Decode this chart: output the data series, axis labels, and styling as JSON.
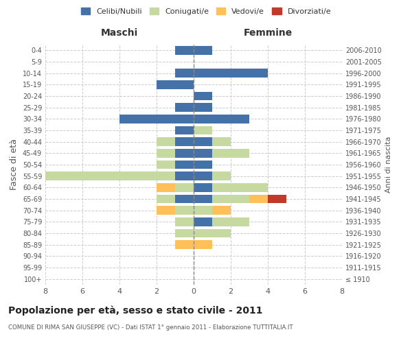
{
  "age_groups": [
    "100+",
    "95-99",
    "90-94",
    "85-89",
    "80-84",
    "75-79",
    "70-74",
    "65-69",
    "60-64",
    "55-59",
    "50-54",
    "45-49",
    "40-44",
    "35-39",
    "30-34",
    "25-29",
    "20-24",
    "15-19",
    "10-14",
    "5-9",
    "0-4"
  ],
  "birth_years": [
    "≤ 1910",
    "1911-1915",
    "1916-1920",
    "1921-1925",
    "1926-1930",
    "1931-1935",
    "1936-1940",
    "1941-1945",
    "1946-1950",
    "1951-1955",
    "1956-1960",
    "1961-1965",
    "1966-1970",
    "1971-1975",
    "1976-1980",
    "1981-1985",
    "1986-1990",
    "1991-1995",
    "1996-2000",
    "2001-2005",
    "2006-2010"
  ],
  "maschi": {
    "celibi": [
      0,
      0,
      0,
      0,
      0,
      0,
      0,
      1,
      0,
      1,
      1,
      1,
      1,
      1,
      4,
      1,
      0,
      2,
      1,
      0,
      1
    ],
    "coniugati": [
      0,
      0,
      0,
      0,
      1,
      1,
      1,
      1,
      1,
      7,
      1,
      1,
      1,
      0,
      0,
      0,
      0,
      0,
      0,
      0,
      0
    ],
    "vedovi": [
      0,
      0,
      0,
      1,
      0,
      0,
      1,
      0,
      1,
      0,
      0,
      0,
      0,
      0,
      0,
      0,
      0,
      0,
      0,
      0,
      0
    ],
    "divorziati": [
      0,
      0,
      0,
      0,
      0,
      0,
      0,
      0,
      0,
      0,
      0,
      0,
      0,
      0,
      0,
      0,
      0,
      0,
      0,
      0,
      0
    ]
  },
  "femmine": {
    "nubili": [
      0,
      0,
      0,
      0,
      0,
      1,
      0,
      1,
      1,
      1,
      1,
      1,
      1,
      0,
      3,
      1,
      1,
      0,
      4,
      0,
      1
    ],
    "coniugate": [
      0,
      0,
      0,
      0,
      2,
      2,
      1,
      2,
      3,
      1,
      0,
      2,
      1,
      1,
      0,
      0,
      0,
      0,
      0,
      0,
      0
    ],
    "vedove": [
      0,
      0,
      0,
      1,
      0,
      0,
      1,
      1,
      0,
      0,
      0,
      0,
      0,
      0,
      0,
      0,
      0,
      0,
      0,
      0,
      0
    ],
    "divorziate": [
      0,
      0,
      0,
      0,
      0,
      0,
      0,
      1,
      0,
      0,
      0,
      0,
      0,
      0,
      0,
      0,
      0,
      0,
      0,
      0,
      0
    ]
  },
  "colors": {
    "celibi_nubili": "#4472a8",
    "coniugati": "#c5d9a0",
    "vedovi": "#ffc05a",
    "divorziati": "#c0392b"
  },
  "xlim": 8,
  "title": "Popolazione per età, sesso e stato civile - 2011",
  "subtitle": "COMUNE DI RIMA SAN GIUSEPPE (VC) - Dati ISTAT 1° gennaio 2011 - Elaborazione TUTTITALIA.IT",
  "ylabel": "Fasce di età",
  "ylabel_right": "Anni di nascita",
  "xlabel_left": "Maschi",
  "xlabel_right": "Femmine",
  "legend_labels": [
    "Celibi/Nubili",
    "Coniugati/e",
    "Vedovi/e",
    "Divorziati/e"
  ],
  "background_color": "#ffffff",
  "grid_color": "#cccccc"
}
